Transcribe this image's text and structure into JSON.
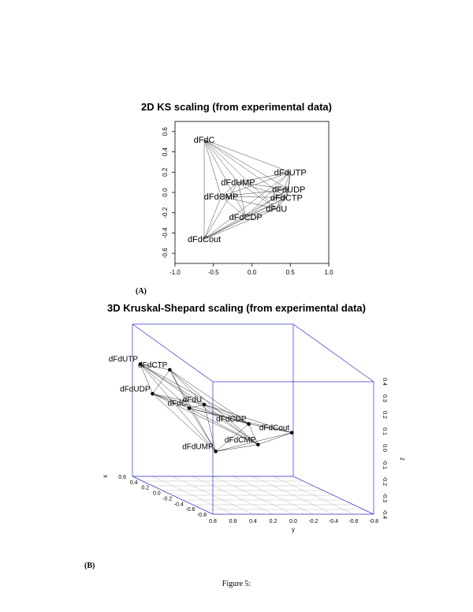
{
  "figure_caption": "Figure 5:",
  "panel_a": {
    "label": "(A)"
  },
  "panel_b": {
    "label": "(B)"
  },
  "chart_data": [
    {
      "type": "scatter",
      "title": "2D KS scaling (from experimental data)",
      "xlabel": "",
      "ylabel": "",
      "xlim": [
        -1.0,
        1.0
      ],
      "ylim": [
        -0.7,
        0.7
      ],
      "xticks": [
        -1.0,
        -0.5,
        0.0,
        0.5,
        1.0
      ],
      "xtick_labels": [
        "-1.0",
        "-0.5",
        "0.0",
        "0.5",
        "1.0"
      ],
      "yticks": [
        -0.6,
        -0.4,
        -0.2,
        0.0,
        0.2,
        0.4,
        0.6
      ],
      "ytick_labels": [
        "-0.6",
        "-0.4",
        "-0.2",
        "0.0",
        "0.2",
        "0.4",
        "0.6"
      ],
      "points": [
        {
          "label": "dFdC",
          "x": -0.62,
          "y": 0.52
        },
        {
          "label": "dFdUTP",
          "x": 0.5,
          "y": 0.2
        },
        {
          "label": "dFdUMP",
          "x": -0.18,
          "y": 0.1
        },
        {
          "label": "dFdUDP",
          "x": 0.48,
          "y": 0.03
        },
        {
          "label": "dFdCMP",
          "x": -0.4,
          "y": -0.04
        },
        {
          "label": "dFdCTP",
          "x": 0.45,
          "y": -0.05
        },
        {
          "label": "dFdU",
          "x": 0.32,
          "y": -0.16
        },
        {
          "label": "dFdCDP",
          "x": -0.08,
          "y": -0.24
        },
        {
          "label": "dFdCout",
          "x": -0.62,
          "y": -0.46
        }
      ],
      "edges": [
        [
          "dFdC",
          "dFdUTP"
        ],
        [
          "dFdC",
          "dFdUMP"
        ],
        [
          "dFdC",
          "dFdUDP"
        ],
        [
          "dFdC",
          "dFdCMP"
        ],
        [
          "dFdC",
          "dFdCTP"
        ],
        [
          "dFdC",
          "dFdU"
        ],
        [
          "dFdC",
          "dFdCDP"
        ],
        [
          "dFdC",
          "dFdCout"
        ],
        [
          "dFdCout",
          "dFdUTP"
        ],
        [
          "dFdCout",
          "dFdUMP"
        ],
        [
          "dFdCout",
          "dFdUDP"
        ],
        [
          "dFdCout",
          "dFdCMP"
        ],
        [
          "dFdCout",
          "dFdCTP"
        ],
        [
          "dFdCout",
          "dFdU"
        ],
        [
          "dFdCout",
          "dFdCDP"
        ],
        [
          "dFdUTP",
          "dFdUMP"
        ],
        [
          "dFdUTP",
          "dFdUDP"
        ],
        [
          "dFdUTP",
          "dFdCMP"
        ],
        [
          "dFdUTP",
          "dFdCTP"
        ],
        [
          "dFdUTP",
          "dFdU"
        ],
        [
          "dFdUTP",
          "dFdCDP"
        ],
        [
          "dFdUMP",
          "dFdUDP"
        ],
        [
          "dFdUMP",
          "dFdCMP"
        ],
        [
          "dFdUMP",
          "dFdCTP"
        ],
        [
          "dFdUMP",
          "dFdU"
        ],
        [
          "dFdUMP",
          "dFdCDP"
        ],
        [
          "dFdUDP",
          "dFdCMP"
        ],
        [
          "dFdUDP",
          "dFdCTP"
        ],
        [
          "dFdUDP",
          "dFdU"
        ],
        [
          "dFdUDP",
          "dFdCDP"
        ],
        [
          "dFdCMP",
          "dFdCTP"
        ],
        [
          "dFdCMP",
          "dFdU"
        ],
        [
          "dFdCMP",
          "dFdCDP"
        ],
        [
          "dFdCTP",
          "dFdU"
        ],
        [
          "dFdCTP",
          "dFdCDP"
        ],
        [
          "dFdU",
          "dFdCDP"
        ]
      ]
    },
    {
      "type": "scatter",
      "title": "3D Kruskal-Shepard scaling (from experimental data)",
      "xlabel": "x",
      "ylabel": "y",
      "zlabel": "z",
      "xlim": [
        -0.8,
        0.6
      ],
      "ylim": [
        -0.8,
        0.8
      ],
      "zlim": [
        -0.4,
        0.4
      ],
      "xtick_labels": [
        "0.6",
        "0.4",
        "0.2",
        "0.0",
        "-0.2",
        "-0.4",
        "-0.6",
        "-0.8"
      ],
      "ytick_labels": [
        "0.8",
        "0.6",
        "0.4",
        "0.2",
        "0.0",
        "-0.2",
        "-0.4",
        "-0.6",
        "-0.8"
      ],
      "ztick_labels": [
        "0.4",
        "0.3",
        "0.2",
        "0.1",
        "0.0",
        "-0.1",
        "-0.2",
        "-0.3",
        "-0.4"
      ],
      "points": [
        {
          "label": "dFdUTP",
          "x": 0.55,
          "y": 0.75,
          "z": 0.2
        },
        {
          "label": "dFdCTP",
          "x": 0.3,
          "y": 0.6,
          "z": 0.22
        },
        {
          "label": "dFdUDP",
          "x": 0.25,
          "y": 0.8,
          "z": 0.1
        },
        {
          "label": "dFdCout",
          "x": -0.6,
          "y": -0.1,
          "z": 0.05
        },
        {
          "label": "dFdU",
          "x": 0.05,
          "y": 0.4,
          "z": 0.08
        },
        {
          "label": "dFdC",
          "x": 0.05,
          "y": 0.55,
          "z": 0.06
        },
        {
          "label": "dFdCDP",
          "x": -0.2,
          "y": 0.1,
          "z": 0.02
        },
        {
          "label": "dFdCMP",
          "x": -0.45,
          "y": 0.15,
          "z": -0.05
        },
        {
          "label": "dFdUMP",
          "x": -0.5,
          "y": 0.6,
          "z": -0.08
        }
      ],
      "edges": [
        [
          "dFdUTP",
          "dFdCTP"
        ],
        [
          "dFdUTP",
          "dFdUDP"
        ],
        [
          "dFdUTP",
          "dFdU"
        ],
        [
          "dFdUTP",
          "dFdC"
        ],
        [
          "dFdUTP",
          "dFdCDP"
        ],
        [
          "dFdUTP",
          "dFdCMP"
        ],
        [
          "dFdUTP",
          "dFdUMP"
        ],
        [
          "dFdCTP",
          "dFdUDP"
        ],
        [
          "dFdCTP",
          "dFdU"
        ],
        [
          "dFdCTP",
          "dFdC"
        ],
        [
          "dFdCTP",
          "dFdCDP"
        ],
        [
          "dFdCTP",
          "dFdCMP"
        ],
        [
          "dFdCTP",
          "dFdUMP"
        ],
        [
          "dFdUDP",
          "dFdU"
        ],
        [
          "dFdUDP",
          "dFdC"
        ],
        [
          "dFdUDP",
          "dFdCDP"
        ],
        [
          "dFdUDP",
          "dFdCMP"
        ],
        [
          "dFdUDP",
          "dFdUMP"
        ],
        [
          "dFdCout",
          "dFdU"
        ],
        [
          "dFdCout",
          "dFdC"
        ],
        [
          "dFdCout",
          "dFdCDP"
        ],
        [
          "dFdCout",
          "dFdCMP"
        ],
        [
          "dFdCout",
          "dFdUMP"
        ],
        [
          "dFdU",
          "dFdC"
        ],
        [
          "dFdU",
          "dFdCDP"
        ],
        [
          "dFdU",
          "dFdCMP"
        ],
        [
          "dFdU",
          "dFdUMP"
        ],
        [
          "dFdC",
          "dFdCDP"
        ],
        [
          "dFdC",
          "dFdCMP"
        ],
        [
          "dFdC",
          "dFdUMP"
        ],
        [
          "dFdCDP",
          "dFdCMP"
        ],
        [
          "dFdCDP",
          "dFdUMP"
        ],
        [
          "dFdCMP",
          "dFdUMP"
        ]
      ],
      "box_color": "#3333cc"
    }
  ]
}
